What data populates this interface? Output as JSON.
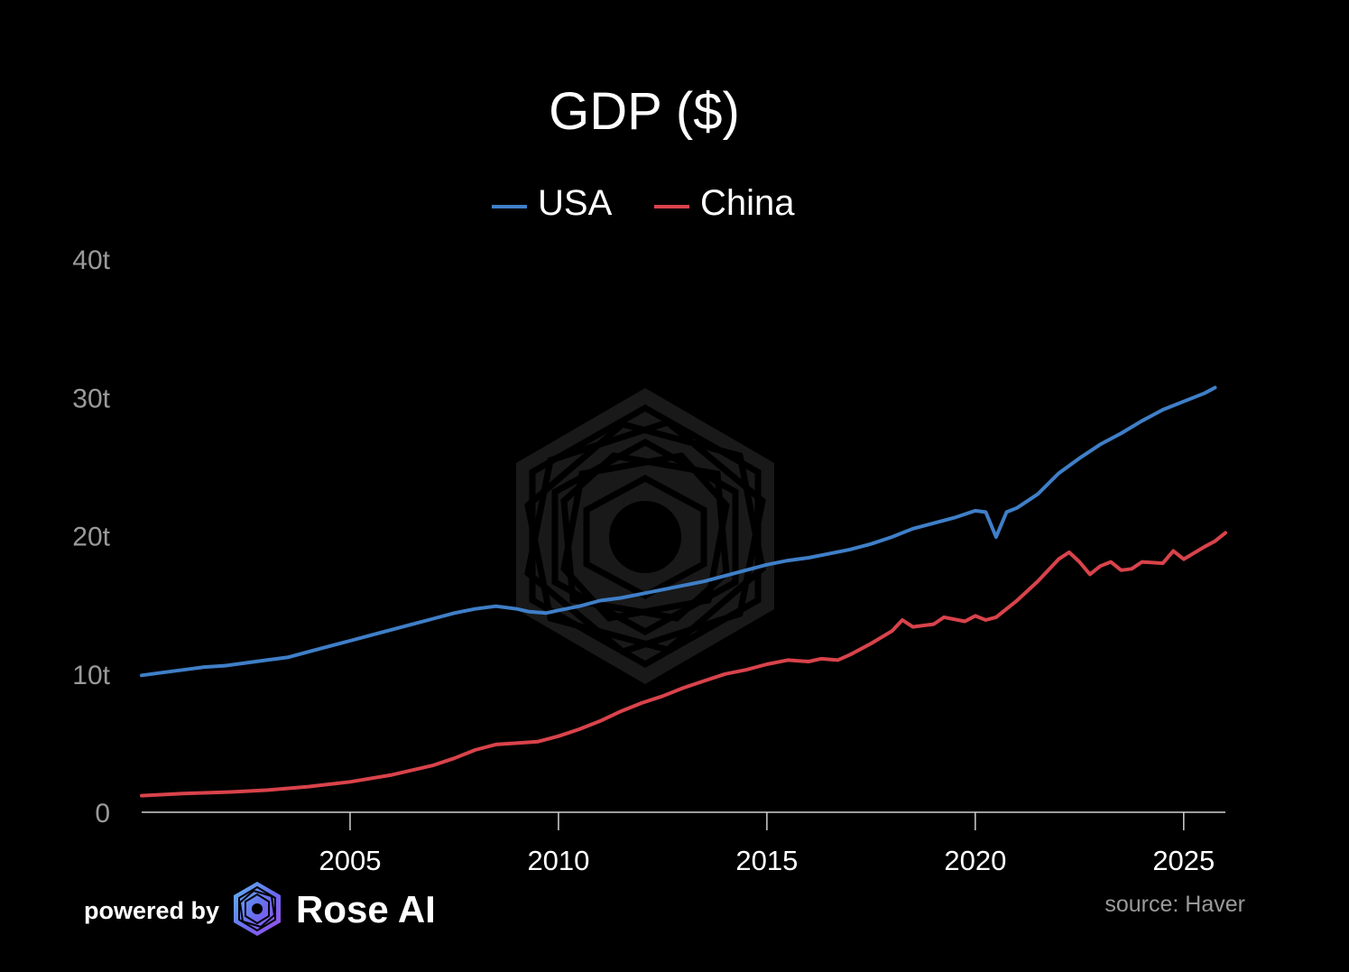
{
  "chart_data": {
    "type": "line",
    "title": "GDP ($)",
    "legend": {
      "placement": "top-center"
    },
    "ylim": [
      0,
      40
    ],
    "y_ticks": [
      {
        "value": 0,
        "label": "0"
      },
      {
        "value": 10,
        "label": "10t"
      },
      {
        "value": 20,
        "label": "20t"
      },
      {
        "value": 30,
        "label": "30t"
      },
      {
        "value": 40,
        "label": "40t"
      }
    ],
    "xlim": [
      2000.0,
      2026.0
    ],
    "x_ticks": [
      {
        "value": 2005,
        "label": "2005"
      },
      {
        "value": 2010,
        "label": "2010"
      },
      {
        "value": 2015,
        "label": "2015"
      },
      {
        "value": 2020,
        "label": "2020"
      },
      {
        "value": 2025,
        "label": "2025"
      }
    ],
    "grid": false,
    "series": [
      {
        "name": "USA",
        "color": "#3f7fc8",
        "points": [
          [
            2000.0,
            9.9
          ],
          [
            2000.5,
            10.1
          ],
          [
            2001.0,
            10.3
          ],
          [
            2001.5,
            10.5
          ],
          [
            2002.0,
            10.6
          ],
          [
            2002.5,
            10.8
          ],
          [
            2003.0,
            11.0
          ],
          [
            2003.5,
            11.2
          ],
          [
            2004.0,
            11.6
          ],
          [
            2004.5,
            12.0
          ],
          [
            2005.0,
            12.4
          ],
          [
            2005.5,
            12.8
          ],
          [
            2006.0,
            13.2
          ],
          [
            2006.5,
            13.6
          ],
          [
            2007.0,
            14.0
          ],
          [
            2007.5,
            14.4
          ],
          [
            2008.0,
            14.7
          ],
          [
            2008.5,
            14.9
          ],
          [
            2009.0,
            14.7
          ],
          [
            2009.3,
            14.5
          ],
          [
            2009.7,
            14.4
          ],
          [
            2010.0,
            14.6
          ],
          [
            2010.5,
            14.9
          ],
          [
            2011.0,
            15.3
          ],
          [
            2011.5,
            15.5
          ],
          [
            2012.0,
            15.8
          ],
          [
            2012.5,
            16.1
          ],
          [
            2013.0,
            16.4
          ],
          [
            2013.5,
            16.7
          ],
          [
            2014.0,
            17.1
          ],
          [
            2014.5,
            17.5
          ],
          [
            2015.0,
            17.9
          ],
          [
            2015.5,
            18.2
          ],
          [
            2016.0,
            18.4
          ],
          [
            2016.5,
            18.7
          ],
          [
            2017.0,
            19.0
          ],
          [
            2017.5,
            19.4
          ],
          [
            2018.0,
            19.9
          ],
          [
            2018.5,
            20.5
          ],
          [
            2019.0,
            20.9
          ],
          [
            2019.5,
            21.3
          ],
          [
            2020.0,
            21.8
          ],
          [
            2020.25,
            21.7
          ],
          [
            2020.5,
            19.9
          ],
          [
            2020.75,
            21.7
          ],
          [
            2021.0,
            22.0
          ],
          [
            2021.5,
            23.0
          ],
          [
            2022.0,
            24.5
          ],
          [
            2022.5,
            25.6
          ],
          [
            2023.0,
            26.6
          ],
          [
            2023.5,
            27.4
          ],
          [
            2024.0,
            28.3
          ],
          [
            2024.5,
            29.1
          ],
          [
            2025.0,
            29.7
          ],
          [
            2025.5,
            30.3
          ],
          [
            2025.75,
            30.7
          ]
        ]
      },
      {
        "name": "China",
        "color": "#d9434b",
        "points": [
          [
            2000.0,
            1.2
          ],
          [
            2001.0,
            1.35
          ],
          [
            2002.0,
            1.45
          ],
          [
            2003.0,
            1.6
          ],
          [
            2004.0,
            1.85
          ],
          [
            2005.0,
            2.2
          ],
          [
            2006.0,
            2.7
          ],
          [
            2007.0,
            3.4
          ],
          [
            2007.5,
            3.9
          ],
          [
            2008.0,
            4.5
          ],
          [
            2008.5,
            4.9
          ],
          [
            2009.0,
            5.0
          ],
          [
            2009.5,
            5.1
          ],
          [
            2010.0,
            5.5
          ],
          [
            2010.5,
            6.0
          ],
          [
            2011.0,
            6.6
          ],
          [
            2011.5,
            7.3
          ],
          [
            2012.0,
            7.9
          ],
          [
            2012.5,
            8.4
          ],
          [
            2013.0,
            9.0
          ],
          [
            2013.5,
            9.5
          ],
          [
            2014.0,
            10.0
          ],
          [
            2014.5,
            10.3
          ],
          [
            2015.0,
            10.7
          ],
          [
            2015.5,
            11.0
          ],
          [
            2016.0,
            10.9
          ],
          [
            2016.3,
            11.1
          ],
          [
            2016.7,
            11.0
          ],
          [
            2017.0,
            11.4
          ],
          [
            2017.5,
            12.2
          ],
          [
            2018.0,
            13.1
          ],
          [
            2018.25,
            13.9
          ],
          [
            2018.5,
            13.4
          ],
          [
            2019.0,
            13.6
          ],
          [
            2019.25,
            14.1
          ],
          [
            2019.75,
            13.8
          ],
          [
            2020.0,
            14.2
          ],
          [
            2020.25,
            13.9
          ],
          [
            2020.5,
            14.1
          ],
          [
            2021.0,
            15.3
          ],
          [
            2021.5,
            16.7
          ],
          [
            2022.0,
            18.3
          ],
          [
            2022.25,
            18.8
          ],
          [
            2022.5,
            18.1
          ],
          [
            2022.75,
            17.2
          ],
          [
            2023.0,
            17.8
          ],
          [
            2023.25,
            18.1
          ],
          [
            2023.5,
            17.5
          ],
          [
            2023.75,
            17.6
          ],
          [
            2024.0,
            18.1
          ],
          [
            2024.5,
            18.0
          ],
          [
            2024.75,
            18.9
          ],
          [
            2025.0,
            18.3
          ],
          [
            2025.5,
            19.2
          ],
          [
            2025.75,
            19.6
          ],
          [
            2026.0,
            20.2
          ]
        ]
      }
    ]
  },
  "footer": {
    "powered_by": "powered by",
    "brand": "Rose AI",
    "source": "source: Haver",
    "logo_icon": "rose-ai-logo-icon",
    "watermark_icon": "rose-ai-watermark-icon"
  }
}
